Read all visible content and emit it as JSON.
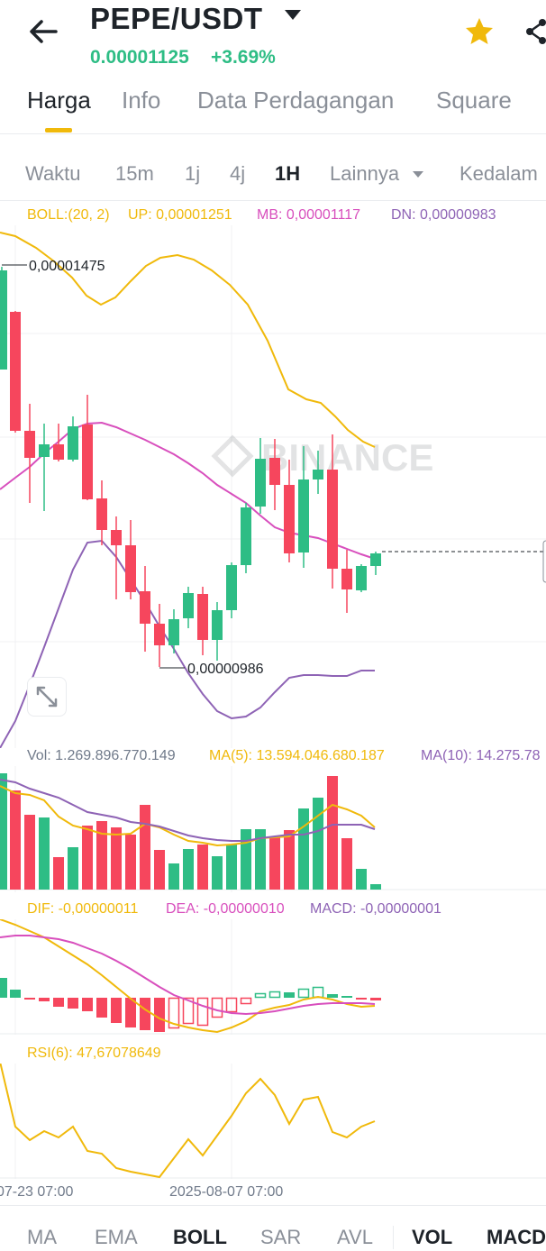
{
  "header": {
    "pair": "PEPE/USDT",
    "price": "0.00001125",
    "change": "+3.69%"
  },
  "tabs": [
    {
      "label": "Harga"
    },
    {
      "label": "Info"
    },
    {
      "label": "Data Perdagangan"
    },
    {
      "label": "Square"
    }
  ],
  "timeframes": {
    "waktu": "Waktu",
    "m15": "15m",
    "j1": "1j",
    "j4": "4j",
    "h1": "1H",
    "lainnya": "Lainnya",
    "kedalaman": "Kedalam"
  },
  "boll": {
    "label": "BOLL:(20, 2)",
    "up": "UP: 0,00001251",
    "mb": "MB: 0,00001117",
    "dn": "DN: 0,00000983"
  },
  "annotations": {
    "high": "0,00001475",
    "low": "0,00000986"
  },
  "watermark": "BINANCE",
  "vol": {
    "vol": "Vol: 1.269.896.770.149",
    "ma5": "MA(5): 13.594.046.680.187",
    "ma10": "MA(10): 14.275.78"
  },
  "macd": {
    "dif": "DIF: -0,00000011",
    "dea": "DEA: -0,00000010",
    "macd": "MACD: -0,00000001"
  },
  "rsi": {
    "label": "RSI(6): 47,67078649"
  },
  "xaxis": {
    "left": "07-23 07:00",
    "mid": "2025-08-07 07:00"
  },
  "bottom_tabs": {
    "ma": "MA",
    "ema": "EMA",
    "boll": "BOLL",
    "sar": "SAR",
    "avl": "AVL",
    "vol": "VOL",
    "macd": "MACD"
  },
  "colors": {
    "up": "#2ebd85",
    "down": "#f6465d",
    "accent": "#f0b90b",
    "mb": "#d84fbd",
    "dn": "#8e63b5"
  },
  "chart_data": {
    "type": "candlestick",
    "price_high_label": "0,00001475",
    "price_low_label": "0,00000986",
    "candles_direction": [
      "up",
      "down",
      "down",
      "up",
      "down",
      "up",
      "down",
      "down",
      "down",
      "down",
      "down",
      "down",
      "up",
      "up",
      "down",
      "down",
      "up",
      "up",
      "up",
      "up",
      "down",
      "down",
      "up",
      "up",
      "down",
      "down",
      "up",
      "up"
    ]
  }
}
